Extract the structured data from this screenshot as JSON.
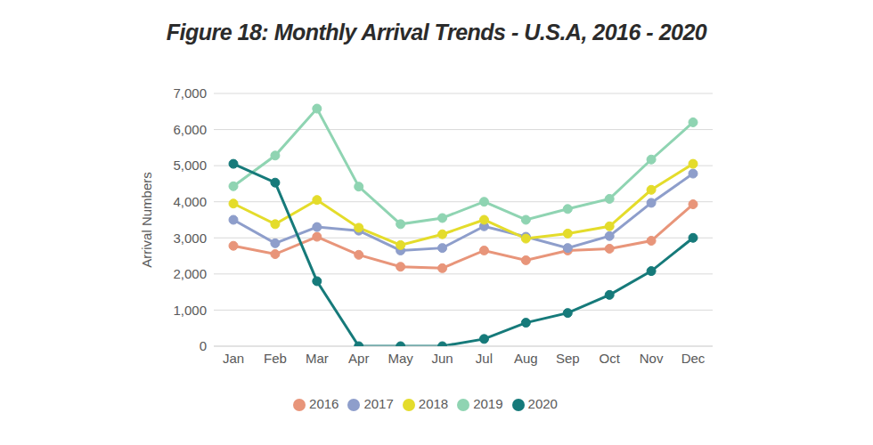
{
  "chart_data": {
    "type": "line",
    "title": "Figure 18: Monthly Arrival Trends - U.S.A, 2016 - 2020",
    "y_label": "Arrival Numbers",
    "categories": [
      "Jan",
      "Feb",
      "Mar",
      "Apr",
      "May",
      "Jun",
      "Jul",
      "Aug",
      "Sep",
      "Oct",
      "Nov",
      "Dec"
    ],
    "series": [
      {
        "name": "2016",
        "color": "#e8957a",
        "marker": "circle",
        "values": [
          2780,
          2550,
          3030,
          2530,
          2200,
          2160,
          2650,
          2380,
          2650,
          2700,
          2920,
          3930
        ]
      },
      {
        "name": "2017",
        "color": "#8e9ecb",
        "marker": "circle",
        "values": [
          3500,
          2850,
          3300,
          3200,
          2650,
          2720,
          3320,
          3030,
          2720,
          3050,
          3970,
          4780
        ]
      },
      {
        "name": "2018",
        "color": "#e4dc2b",
        "marker": "circle",
        "values": [
          3950,
          3380,
          4050,
          3280,
          2800,
          3100,
          3500,
          2980,
          3120,
          3320,
          4330,
          5050
        ]
      },
      {
        "name": "2019",
        "color": "#8fd4b2",
        "marker": "circle",
        "values": [
          4430,
          5280,
          6580,
          4420,
          3380,
          3550,
          4000,
          3500,
          3800,
          4080,
          5170,
          6200
        ]
      },
      {
        "name": "2020",
        "color": "#167a7a",
        "marker": "circle",
        "values": [
          5050,
          4530,
          1800,
          0,
          0,
          0,
          200,
          650,
          920,
          1420,
          2080,
          3000
        ]
      }
    ],
    "ylim": [
      0,
      7000
    ],
    "yticks": [
      0,
      {
        "value": 1000,
        "label": "1,000"
      },
      {
        "value": 2000,
        "label": "2,000"
      },
      {
        "value": 3000,
        "label": "3,000"
      },
      {
        "value": 4000,
        "label": "4,000"
      },
      {
        "value": 5000,
        "label": "5,000"
      },
      {
        "value": 6000,
        "label": "6,000"
      },
      {
        "value": 7000,
        "label": "7,000"
      }
    ],
    "grid": true,
    "legend": "bottom"
  }
}
